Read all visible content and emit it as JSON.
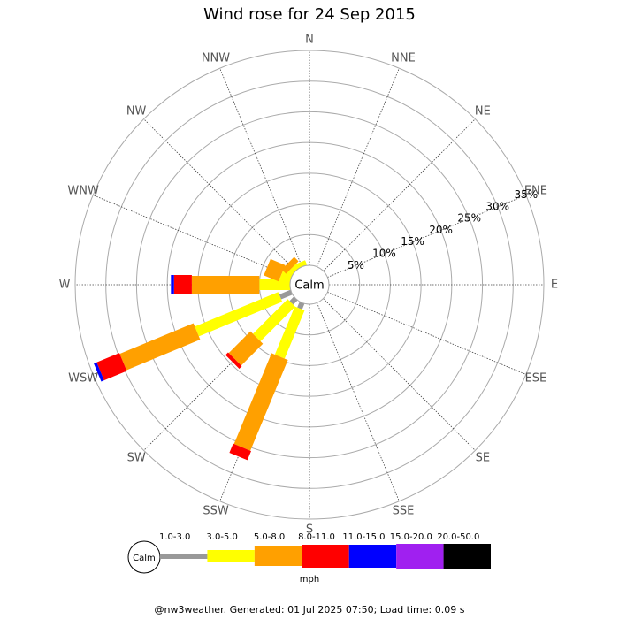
{
  "chart_data": {
    "type": "windrose",
    "title": "Wind rose for 24 Sep 2015",
    "directions": [
      "N",
      "NNE",
      "NE",
      "ENE",
      "E",
      "ESE",
      "SE",
      "SSE",
      "S",
      "SSW",
      "SW",
      "WSW",
      "W",
      "WNW",
      "NW",
      "NNW"
    ],
    "calm_label": "Calm",
    "rlim": [
      0,
      35
    ],
    "rticks": [
      {
        "value": 5,
        "label": "5%"
      },
      {
        "value": 10,
        "label": "10%"
      },
      {
        "value": 15,
        "label": "15%"
      },
      {
        "value": 20,
        "label": "20%"
      },
      {
        "value": 25,
        "label": "25%"
      },
      {
        "value": 30,
        "label": "30%"
      },
      {
        "value": 35,
        "label": "35%"
      }
    ],
    "series": [
      {
        "name": "1.0-3.0",
        "color": "#999999",
        "values": [
          0,
          0,
          0,
          0,
          0,
          0,
          0,
          0,
          0,
          1,
          1,
          2,
          0,
          0,
          0,
          0
        ]
      },
      {
        "name": "3.0-5.0",
        "color": "#ffff00",
        "values": [
          0,
          0,
          0,
          0,
          0,
          0,
          0,
          0,
          0,
          8.5,
          8,
          14.7,
          5,
          1.7,
          0.8,
          0.8
        ]
      },
      {
        "name": "5.0-8.0",
        "color": "#ffa000",
        "values": [
          0,
          0,
          0,
          0,
          0,
          0,
          0,
          0,
          0,
          16,
          5,
          13,
          11,
          2.6,
          1,
          0
        ]
      },
      {
        "name": "8.0-11.0",
        "color": "#ff0000",
        "values": [
          0,
          0,
          0,
          0,
          0,
          0,
          0,
          0,
          0,
          1.6,
          0.6,
          4,
          2.9,
          0,
          0,
          0
        ]
      },
      {
        "name": "11.0-15.0",
        "color": "#0000ff",
        "values": [
          0,
          0,
          0,
          0,
          0,
          0,
          0,
          0,
          0,
          0,
          0,
          0.5,
          0.5,
          0,
          0,
          0
        ]
      },
      {
        "name": "15.0-20.0",
        "color": "#a020f0",
        "values": [
          0,
          0,
          0,
          0,
          0,
          0,
          0,
          0,
          0,
          0,
          0,
          0,
          0,
          0,
          0,
          0
        ]
      },
      {
        "name": "20.0-50.0",
        "color": "#000000",
        "values": [
          0,
          0,
          0,
          0,
          0,
          0,
          0,
          0,
          0,
          0,
          0,
          0,
          0,
          0,
          0,
          0
        ]
      }
    ],
    "unit": "mph",
    "footer": "@nw3weather. Generated: 01 Jul 2025 07:50; Load time: 0.09 s"
  }
}
